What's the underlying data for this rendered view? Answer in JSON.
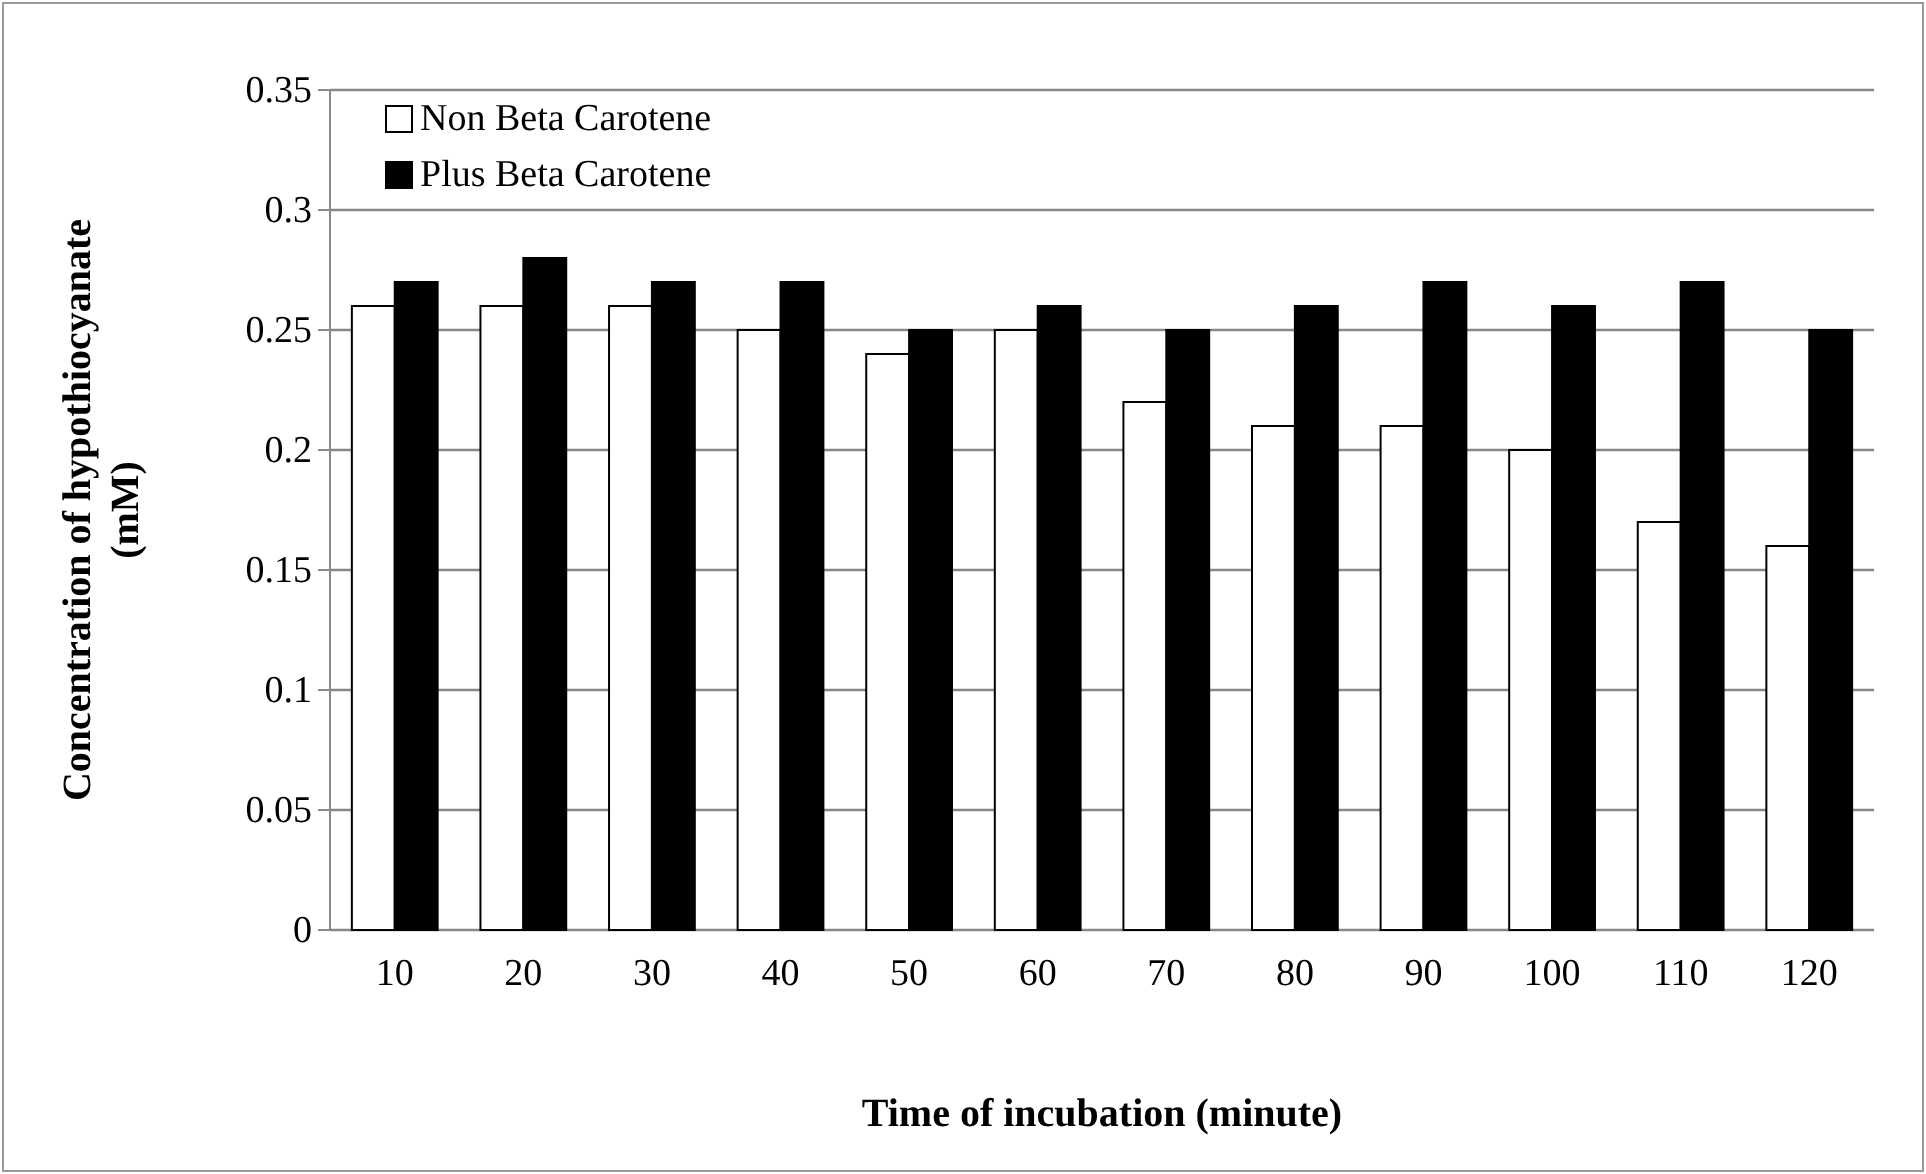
{
  "chart_data": {
    "type": "bar",
    "xlabel": "Time of incubation (minute)",
    "ylabel": "Concentration of hypothiocyanate (mM)",
    "categories": [
      "10",
      "20",
      "30",
      "40",
      "50",
      "60",
      "70",
      "80",
      "90",
      "100",
      "110",
      "120"
    ],
    "series": [
      {
        "name": "Non Beta Carotene",
        "color": "#ffffff",
        "values": [
          0.26,
          0.26,
          0.26,
          0.25,
          0.24,
          0.25,
          0.22,
          0.21,
          0.21,
          0.2,
          0.17,
          0.16
        ]
      },
      {
        "name": "Plus Beta Carotene",
        "color": "#000000",
        "values": [
          0.27,
          0.28,
          0.27,
          0.27,
          0.25,
          0.26,
          0.25,
          0.26,
          0.27,
          0.26,
          0.27,
          0.25
        ]
      }
    ],
    "ylim": [
      0,
      0.35
    ],
    "yticks": [
      0,
      0.05,
      0.1,
      0.15,
      0.2,
      0.25,
      0.3,
      0.35
    ],
    "grid": "y",
    "legend": "top left"
  }
}
